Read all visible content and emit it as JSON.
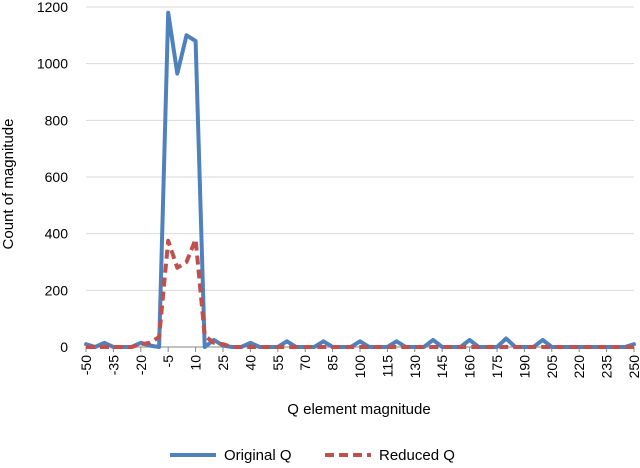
{
  "chart_data": {
    "type": "line",
    "xlabel": "Q element magnitude",
    "ylabel": "Count of magnitude",
    "ylim": [
      0,
      1200
    ],
    "yticks": [
      0,
      200,
      400,
      600,
      800,
      1000,
      1200
    ],
    "x_tick_labels": [
      "-50",
      "-35",
      "-20",
      "-5",
      "10",
      "25",
      "40",
      "55",
      "70",
      "85",
      "100",
      "115",
      "130",
      "145",
      "160",
      "175",
      "190",
      "205",
      "220",
      "235",
      "250"
    ],
    "xlim": [
      -50,
      250
    ],
    "grid": "horizontal",
    "legend": "bottom",
    "series": [
      {
        "name": "Original Q",
        "color": "#4F81BD",
        "style": "solid",
        "points": [
          [
            -50,
            10
          ],
          [
            -45,
            0
          ],
          [
            -40,
            15
          ],
          [
            -35,
            0
          ],
          [
            -30,
            0
          ],
          [
            -25,
            0
          ],
          [
            -20,
            15
          ],
          [
            -15,
            5
          ],
          [
            -10,
            0
          ],
          [
            -5,
            1180
          ],
          [
            0,
            965
          ],
          [
            5,
            1100
          ],
          [
            10,
            1080
          ],
          [
            15,
            0
          ],
          [
            20,
            25
          ],
          [
            25,
            5
          ],
          [
            30,
            0
          ],
          [
            35,
            0
          ],
          [
            40,
            15
          ],
          [
            45,
            0
          ],
          [
            50,
            0
          ],
          [
            55,
            0
          ],
          [
            60,
            20
          ],
          [
            65,
            0
          ],
          [
            70,
            0
          ],
          [
            75,
            0
          ],
          [
            80,
            20
          ],
          [
            85,
            0
          ],
          [
            90,
            0
          ],
          [
            95,
            0
          ],
          [
            100,
            20
          ],
          [
            105,
            0
          ],
          [
            110,
            0
          ],
          [
            115,
            0
          ],
          [
            120,
            20
          ],
          [
            125,
            0
          ],
          [
            130,
            0
          ],
          [
            135,
            0
          ],
          [
            140,
            25
          ],
          [
            145,
            0
          ],
          [
            150,
            0
          ],
          [
            155,
            0
          ],
          [
            160,
            25
          ],
          [
            165,
            0
          ],
          [
            170,
            0
          ],
          [
            175,
            0
          ],
          [
            180,
            30
          ],
          [
            185,
            0
          ],
          [
            190,
            0
          ],
          [
            195,
            0
          ],
          [
            200,
            25
          ],
          [
            205,
            0
          ],
          [
            210,
            0
          ],
          [
            215,
            0
          ],
          [
            220,
            0
          ],
          [
            225,
            0
          ],
          [
            230,
            0
          ],
          [
            235,
            0
          ],
          [
            240,
            0
          ],
          [
            245,
            0
          ],
          [
            250,
            10
          ]
        ]
      },
      {
        "name": "Reduced Q",
        "color": "#C0504D",
        "style": "dashed",
        "points": [
          [
            -50,
            0
          ],
          [
            -45,
            0
          ],
          [
            -40,
            0
          ],
          [
            -35,
            0
          ],
          [
            -30,
            0
          ],
          [
            -25,
            0
          ],
          [
            -20,
            10
          ],
          [
            -15,
            15
          ],
          [
            -10,
            35
          ],
          [
            -5,
            375
          ],
          [
            0,
            280
          ],
          [
            5,
            300
          ],
          [
            10,
            380
          ],
          [
            15,
            40
          ],
          [
            20,
            15
          ],
          [
            25,
            10
          ],
          [
            30,
            0
          ],
          [
            35,
            0
          ],
          [
            40,
            0
          ],
          [
            45,
            0
          ],
          [
            50,
            0
          ],
          [
            55,
            0
          ],
          [
            60,
            0
          ],
          [
            65,
            0
          ],
          [
            70,
            0
          ],
          [
            75,
            0
          ],
          [
            80,
            0
          ],
          [
            85,
            0
          ],
          [
            90,
            0
          ],
          [
            95,
            0
          ],
          [
            100,
            0
          ],
          [
            105,
            0
          ],
          [
            110,
            0
          ],
          [
            115,
            0
          ],
          [
            120,
            0
          ],
          [
            125,
            0
          ],
          [
            130,
            0
          ],
          [
            135,
            0
          ],
          [
            140,
            0
          ],
          [
            145,
            0
          ],
          [
            150,
            0
          ],
          [
            155,
            0
          ],
          [
            160,
            0
          ],
          [
            165,
            0
          ],
          [
            170,
            0
          ],
          [
            175,
            0
          ],
          [
            180,
            0
          ],
          [
            185,
            0
          ],
          [
            190,
            0
          ],
          [
            195,
            0
          ],
          [
            200,
            0
          ],
          [
            205,
            0
          ],
          [
            210,
            0
          ],
          [
            215,
            0
          ],
          [
            220,
            0
          ],
          [
            225,
            0
          ],
          [
            230,
            0
          ],
          [
            235,
            0
          ],
          [
            240,
            0
          ],
          [
            245,
            0
          ],
          [
            250,
            0
          ]
        ]
      }
    ]
  }
}
